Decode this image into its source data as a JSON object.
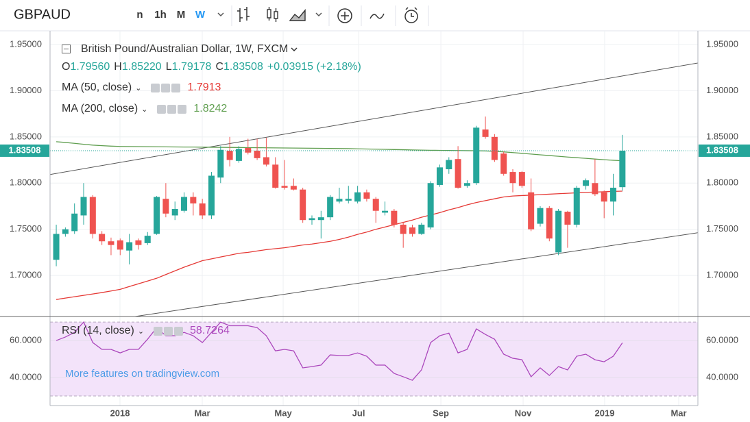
{
  "toolbar": {
    "symbol": "GBPAUD",
    "intervals": [
      "n",
      "1h",
      "M",
      "W"
    ],
    "selected_interval": "W"
  },
  "watermark": "More features on tradingview.com",
  "chart_data": [
    {
      "type": "candlestick",
      "title": "British Pound/Australian Dollar, 1W, FXCM",
      "header": {
        "ohlc": [
          {
            "key": "O",
            "value": "1.79560"
          },
          {
            "key": "H",
            "value": "1.85220"
          },
          {
            "key": "L",
            "value": "1.79178"
          },
          {
            "key": "C",
            "value": "1.83508"
          }
        ],
        "change": "+0.03915 (+2.18%)"
      },
      "up_color": "#26a69a",
      "down_color": "#ef5350",
      "x": [
        0,
        1,
        2,
        3,
        4,
        5,
        6,
        7,
        8,
        9,
        10,
        11,
        12,
        13,
        14,
        15,
        16,
        17,
        18,
        19,
        20,
        21,
        22,
        23,
        24,
        25,
        26,
        27,
        28,
        29,
        30,
        31,
        32,
        33,
        34,
        35,
        36,
        37,
        38,
        39,
        40,
        41,
        42,
        43,
        44,
        45,
        46,
        47,
        48,
        49,
        50,
        51,
        52,
        53,
        54,
        55,
        56,
        57,
        58,
        59,
        60,
        61,
        62
      ],
      "open": [
        1.717,
        1.745,
        1.748,
        1.765,
        1.785,
        1.745,
        1.737,
        1.738,
        1.727,
        1.738,
        1.735,
        1.745,
        1.783,
        1.765,
        1.77,
        1.785,
        1.778,
        1.765,
        1.806,
        1.835,
        1.824,
        1.838,
        1.835,
        1.828,
        1.82,
        1.797,
        1.797,
        1.793,
        1.76,
        1.76,
        1.763,
        1.78,
        1.781,
        1.78,
        1.79,
        1.783,
        1.768,
        1.77,
        1.755,
        1.752,
        1.745,
        1.752,
        1.798,
        1.815,
        1.826,
        1.797,
        1.8,
        1.858,
        1.85,
        1.832,
        1.812,
        1.812,
        1.79,
        1.756,
        1.773,
        1.725,
        1.769,
        1.755,
        1.797,
        1.8,
        1.79,
        1.78,
        1.7956
      ],
      "high": [
        1.755,
        1.752,
        1.778,
        1.8,
        1.787,
        1.748,
        1.741,
        1.74,
        1.745,
        1.74,
        1.747,
        1.786,
        1.8,
        1.78,
        1.79,
        1.79,
        1.783,
        1.812,
        1.84,
        1.85,
        1.84,
        1.848,
        1.848,
        1.849,
        1.828,
        1.825,
        1.805,
        1.795,
        1.765,
        1.77,
        1.787,
        1.795,
        1.797,
        1.797,
        1.793,
        1.785,
        1.78,
        1.772,
        1.758,
        1.755,
        1.757,
        1.802,
        1.82,
        1.828,
        1.84,
        1.803,
        1.862,
        1.872,
        1.853,
        1.834,
        1.815,
        1.813,
        1.805,
        1.775,
        1.775,
        1.772,
        1.77,
        1.797,
        1.805,
        1.826,
        1.792,
        1.81,
        1.8522
      ],
      "low": [
        1.71,
        1.742,
        1.745,
        1.755,
        1.74,
        1.733,
        1.722,
        1.722,
        1.712,
        1.728,
        1.733,
        1.744,
        1.763,
        1.76,
        1.768,
        1.765,
        1.761,
        1.761,
        1.8,
        1.818,
        1.822,
        1.831,
        1.825,
        1.818,
        1.794,
        1.793,
        1.792,
        1.757,
        1.755,
        1.74,
        1.76,
        1.778,
        1.778,
        1.778,
        1.78,
        1.757,
        1.765,
        1.752,
        1.73,
        1.742,
        1.744,
        1.75,
        1.796,
        1.81,
        1.794,
        1.795,
        1.798,
        1.848,
        1.823,
        1.808,
        1.79,
        1.795,
        1.748,
        1.753,
        1.737,
        1.722,
        1.73,
        1.752,
        1.793,
        1.786,
        1.762,
        1.765,
        1.79178
      ],
      "close": [
        1.745,
        1.75,
        1.767,
        1.785,
        1.745,
        1.737,
        1.733,
        1.728,
        1.736,
        1.733,
        1.743,
        1.785,
        1.767,
        1.772,
        1.785,
        1.778,
        1.765,
        1.808,
        1.836,
        1.825,
        1.837,
        1.833,
        1.827,
        1.82,
        1.795,
        1.795,
        1.793,
        1.76,
        1.762,
        1.763,
        1.785,
        1.783,
        1.783,
        1.79,
        1.783,
        1.77,
        1.77,
        1.755,
        1.745,
        1.745,
        1.755,
        1.8,
        1.817,
        1.825,
        1.795,
        1.8,
        1.86,
        1.85,
        1.825,
        1.81,
        1.8,
        1.797,
        1.75,
        1.773,
        1.74,
        1.77,
        1.755,
        1.795,
        1.803,
        1.788,
        1.78,
        1.795,
        1.83508
      ],
      "series": [
        {
          "name": "MA (50, close)",
          "color": "#e53935",
          "values": [
            1.674,
            1.6755,
            1.677,
            1.6785,
            1.68,
            1.6815,
            1.6832,
            1.685,
            1.688,
            1.691,
            1.694,
            1.697,
            1.701,
            1.705,
            1.709,
            1.7125,
            1.716,
            1.718,
            1.72,
            1.722,
            1.724,
            1.725,
            1.7265,
            1.728,
            1.729,
            1.73,
            1.7315,
            1.733,
            1.734,
            1.7355,
            1.737,
            1.739,
            1.7415,
            1.7445,
            1.747,
            1.75,
            1.7525,
            1.755,
            1.7575,
            1.76,
            1.763,
            1.7655,
            1.768,
            1.771,
            1.7735,
            1.7765,
            1.779,
            1.781,
            1.783,
            1.785,
            1.786,
            1.7865,
            1.787,
            1.7875,
            1.788,
            1.7885,
            1.789,
            1.7895,
            1.79,
            1.7903,
            1.7906,
            1.791,
            1.7913
          ]
        },
        {
          "name": "MA (200, close)",
          "color": "#5f9e4f",
          "values": [
            1.8448,
            1.844,
            1.843,
            1.842,
            1.8411,
            1.8405,
            1.84,
            1.8397,
            1.8396,
            1.8395,
            1.8394,
            1.8393,
            1.8392,
            1.8391,
            1.839,
            1.839,
            1.8389,
            1.8388,
            1.8387,
            1.8386,
            1.8385,
            1.8384,
            1.8383,
            1.8382,
            1.8381,
            1.838,
            1.8379,
            1.8378,
            1.8377,
            1.8376,
            1.8375,
            1.8374,
            1.8373,
            1.8371,
            1.8369,
            1.8367,
            1.8365,
            1.8363,
            1.8361,
            1.8359,
            1.8357,
            1.8355,
            1.8354,
            1.8353,
            1.8352,
            1.8351,
            1.835,
            1.8348,
            1.8344,
            1.8338,
            1.833,
            1.8322,
            1.8314,
            1.8306,
            1.8298,
            1.829,
            1.8282,
            1.8275,
            1.8268,
            1.826,
            1.8253,
            1.8247,
            1.8242
          ]
        }
      ],
      "trend_lines": [
        {
          "x": [
            -0.68,
            70.27
          ],
          "y": [
            1.8093,
            1.93
          ]
        },
        {
          "x": [
            -0.68,
            70.27
          ],
          "y": [
            1.6419,
            1.7463
          ]
        }
      ],
      "xlim": [
        -0.68,
        70.27
      ],
      "xticks": [
        {
          "value": 6.98,
          "label": "2018"
        },
        {
          "value": 15.99,
          "label": "Mar"
        },
        {
          "value": 24.85,
          "label": "May"
        },
        {
          "value": 33.11,
          "label": "Jul"
        },
        {
          "value": 42.12,
          "label": "Sep"
        },
        {
          "value": 51.13,
          "label": "Nov"
        },
        {
          "value": 60.06,
          "label": "2019"
        },
        {
          "value": 68.17,
          "label": "Mar"
        }
      ],
      "ylim": [
        1.6556,
        1.9648
      ],
      "yticks": [
        {
          "value": 1.7,
          "label": "1.70000"
        },
        {
          "value": 1.75,
          "label": "1.75000"
        },
        {
          "value": 1.8,
          "label": "1.80000"
        },
        {
          "value": 1.85,
          "label": "1.85000"
        },
        {
          "value": 1.9,
          "label": "1.90000"
        },
        {
          "value": 1.95,
          "label": "1.95000"
        }
      ],
      "grid": true
    },
    {
      "type": "line",
      "name": "RSI (14, close)",
      "color": "#ab47bc",
      "band_color": "#f3e3fa",
      "values": [
        60,
        61.9,
        64.4,
        70,
        58.9,
        55.2,
        55.2,
        53.3,
        55.2,
        55.2,
        60.7,
        67,
        62.6,
        62.6,
        64.4,
        62.6,
        58.9,
        64.4,
        70,
        68,
        68,
        68,
        67,
        62.6,
        54.4,
        55.2,
        54.4,
        45.2,
        45.9,
        46.7,
        52.2,
        51.9,
        51.9,
        53.3,
        51.5,
        46.7,
        46.7,
        42.2,
        40.4,
        38.5,
        44.1,
        58.9,
        62.6,
        64,
        53.3,
        55.2,
        66.3,
        63.3,
        60.7,
        52.6,
        50.4,
        49.6,
        40.4,
        45.2,
        41.1,
        45.9,
        44.1,
        51.5,
        52.6,
        49.6,
        48.5,
        51.5,
        58.7264
      ],
      "bands": [
        30,
        70
      ],
      "ylim": [
        24.8,
        73.0
      ],
      "yticks": [
        {
          "value": 40,
          "label": "40.0000"
        },
        {
          "value": 60,
          "label": "60.0000"
        }
      ],
      "grid": true
    }
  ]
}
